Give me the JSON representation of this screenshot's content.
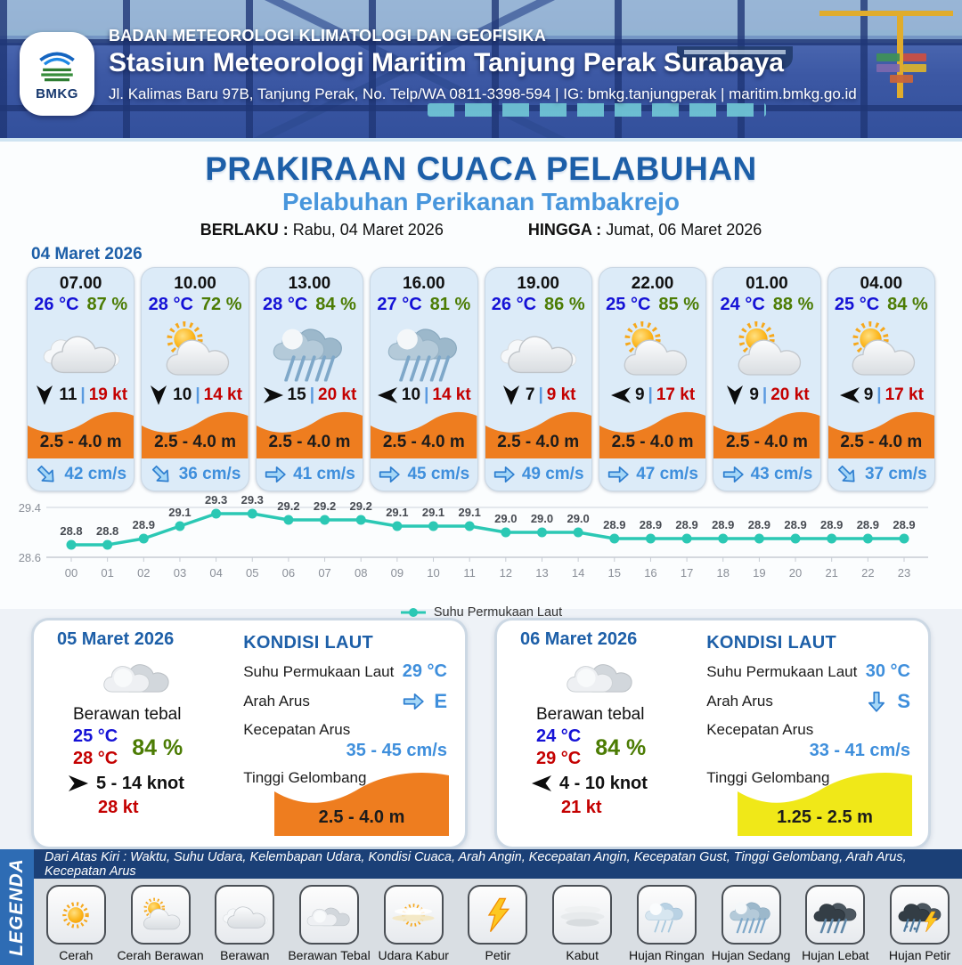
{
  "header": {
    "logo_label": "BMKG",
    "org": "BADAN METEOROLOGI KLIMATOLOGI DAN GEOFISIKA",
    "station": "Stasiun Meteorologi Maritim Tanjung Perak Surabaya",
    "address": "Jl. Kalimas Baru 97B, Tanjung Perak, No. Telp/WA 0811-3398-594 | IG: bmkg.tanjungperak | maritim.bmkg.go.id"
  },
  "title": {
    "main": "PRAKIRAAN CUACA PELABUHAN",
    "sub": "Pelabuhan Perikanan Tambakrejo",
    "berlaku_label": "BERLAKU :",
    "berlaku_value": "Rabu, 04 Maret 2026",
    "hingga_label": "HINGGA :",
    "hingga_value": "Jumat, 06 Maret 2026"
  },
  "forecast_date": "04 Maret 2026",
  "strings": {
    "sep": "|"
  },
  "hourly": [
    {
      "time": "07.00",
      "temp": "26 °C",
      "rh": "87 %",
      "icon": "berawan",
      "wind_deg": 90,
      "wind": "11",
      "gust": "19 kt",
      "wave": "2.5 - 4.0 m",
      "cur_deg": 45,
      "cur": "42 cm/s"
    },
    {
      "time": "10.00",
      "temp": "28 °C",
      "rh": "72 %",
      "icon": "cerah-berawan",
      "wind_deg": 90,
      "wind": "10",
      "gust": "14 kt",
      "wave": "2.5 - 4.0 m",
      "cur_deg": 45,
      "cur": "36 cm/s"
    },
    {
      "time": "13.00",
      "temp": "28 °C",
      "rh": "84 %",
      "icon": "hujan-sedang",
      "wind_deg": 0,
      "wind": "15",
      "gust": "20 kt",
      "wave": "2.5 - 4.0 m",
      "cur_deg": 0,
      "cur": "41 cm/s"
    },
    {
      "time": "16.00",
      "temp": "27 °C",
      "rh": "81 %",
      "icon": "hujan-sedang",
      "wind_deg": 180,
      "wind": "10",
      "gust": "14 kt",
      "wave": "2.5 - 4.0 m",
      "cur_deg": 0,
      "cur": "45 cm/s"
    },
    {
      "time": "19.00",
      "temp": "26 °C",
      "rh": "86 %",
      "icon": "berawan",
      "wind_deg": 90,
      "wind": "7",
      "gust": "9 kt",
      "wave": "2.5 - 4.0 m",
      "cur_deg": 0,
      "cur": "49 cm/s"
    },
    {
      "time": "22.00",
      "temp": "25 °C",
      "rh": "85 %",
      "icon": "cerah-berawan",
      "wind_deg": 180,
      "wind": "9",
      "gust": "17 kt",
      "wave": "2.5 - 4.0 m",
      "cur_deg": 0,
      "cur": "47 cm/s"
    },
    {
      "time": "01.00",
      "temp": "24 °C",
      "rh": "88 %",
      "icon": "cerah-berawan",
      "wind_deg": 90,
      "wind": "9",
      "gust": "20 kt",
      "wave": "2.5 - 4.0 m",
      "cur_deg": 0,
      "cur": "43 cm/s"
    },
    {
      "time": "04.00",
      "temp": "25 °C",
      "rh": "84 %",
      "icon": "cerah-berawan",
      "wind_deg": 180,
      "wind": "9",
      "gust": "17 kt",
      "wave": "2.5 - 4.0 m",
      "cur_deg": 45,
      "cur": "37 cm/s"
    }
  ],
  "chart_data": {
    "type": "line",
    "series_name": "Suhu Permukaan Laut",
    "x": [
      "00",
      "01",
      "02",
      "03",
      "04",
      "05",
      "06",
      "07",
      "08",
      "09",
      "10",
      "11",
      "12",
      "13",
      "14",
      "15",
      "16",
      "17",
      "18",
      "19",
      "20",
      "21",
      "22",
      "23"
    ],
    "values": [
      28.8,
      28.8,
      28.9,
      29.1,
      29.3,
      29.3,
      29.2,
      29.2,
      29.2,
      29.1,
      29.1,
      29.1,
      29.0,
      29.0,
      29.0,
      28.9,
      28.9,
      28.9,
      28.9,
      28.9,
      28.9,
      28.9,
      28.9,
      28.9
    ],
    "ylim": [
      28.6,
      29.4
    ],
    "yticks": [
      "29.4",
      "28.6"
    ],
    "grid": true,
    "legend_position": "bottom",
    "line_color": "#2bc8b4"
  },
  "days": [
    {
      "date": "05 Maret 2026",
      "icon": "berawan-tebal",
      "cond": "Berawan tebal",
      "tmin": "25 °C",
      "tmax": "28 °C",
      "rh": "84 %",
      "wind_deg": 0,
      "wind_range": "5 - 14 knot",
      "gust": "28 kt",
      "sea": {
        "title": "KONDISI LAUT",
        "sst_label": "Suhu Permukaan Laut",
        "sst": "29 °C",
        "arah_label": "Arah Arus",
        "arah_deg": 0,
        "arah": "E",
        "kec_label": "Kecepatan Arus",
        "kec": "35 - 45 cm/s",
        "wave_label": "Tinggi Gelombang",
        "wave": "2.5 - 4.0 m",
        "wave_color": "#ee7d1f"
      }
    },
    {
      "date": "06 Maret 2026",
      "icon": "berawan-tebal",
      "cond": "Berawan tebal",
      "tmin": "24 °C",
      "tmax": "29 °C",
      "rh": "84 %",
      "wind_deg": 180,
      "wind_range": "4 - 10 knot",
      "gust": "21 kt",
      "sea": {
        "title": "KONDISI LAUT",
        "sst_label": "Suhu Permukaan Laut",
        "sst": "30 °C",
        "arah_label": "Arah Arus",
        "arah_deg": 90,
        "arah": "S",
        "kec_label": "Kecepatan Arus",
        "kec": "33 - 41 cm/s",
        "wave_label": "Tinggi Gelombang",
        "wave": "1.25 - 2.5 m",
        "wave_color": "#f0e818"
      }
    }
  ],
  "legend": {
    "title": "LEGENDA",
    "caption": "Dari Atas Kiri : Waktu, Suhu Udara, Kelembapan Udara, Kondisi Cuaca, Arah Angin, Kecepatan Angin, Kecepatan Gust, Tinggi Gelombang, Arah Arus, Kecepatan Arus",
    "items": [
      {
        "label": "Cerah",
        "icon": "cerah"
      },
      {
        "label": "Cerah Berawan",
        "icon": "cerah-berawan"
      },
      {
        "label": "Berawan",
        "icon": "berawan"
      },
      {
        "label": "Berawan Tebal",
        "icon": "berawan-tebal"
      },
      {
        "label": "Udara Kabur",
        "icon": "udara-kabur"
      },
      {
        "label": "Petir",
        "icon": "petir"
      },
      {
        "label": "Kabut",
        "icon": "kabut"
      },
      {
        "label": "Hujan Ringan",
        "icon": "hujan-ringan"
      },
      {
        "label": "Hujan Sedang",
        "icon": "hujan-sedang"
      },
      {
        "label": "Hujan Lebat",
        "icon": "hujan-lebat"
      },
      {
        "label": "Hujan Petir",
        "icon": "hujan-petir"
      }
    ]
  },
  "colors": {
    "accent_blue": "#1d5fa8",
    "sub_blue": "#4896dc",
    "temp_blue": "#1512d6",
    "humidity_green": "#4c7c04",
    "gust_red": "#c40000",
    "wave_orange": "#ee7d1f",
    "wave_yellow": "#f0e818",
    "current_blue": "#3f8fdc",
    "chart_line": "#2bc8b4"
  }
}
